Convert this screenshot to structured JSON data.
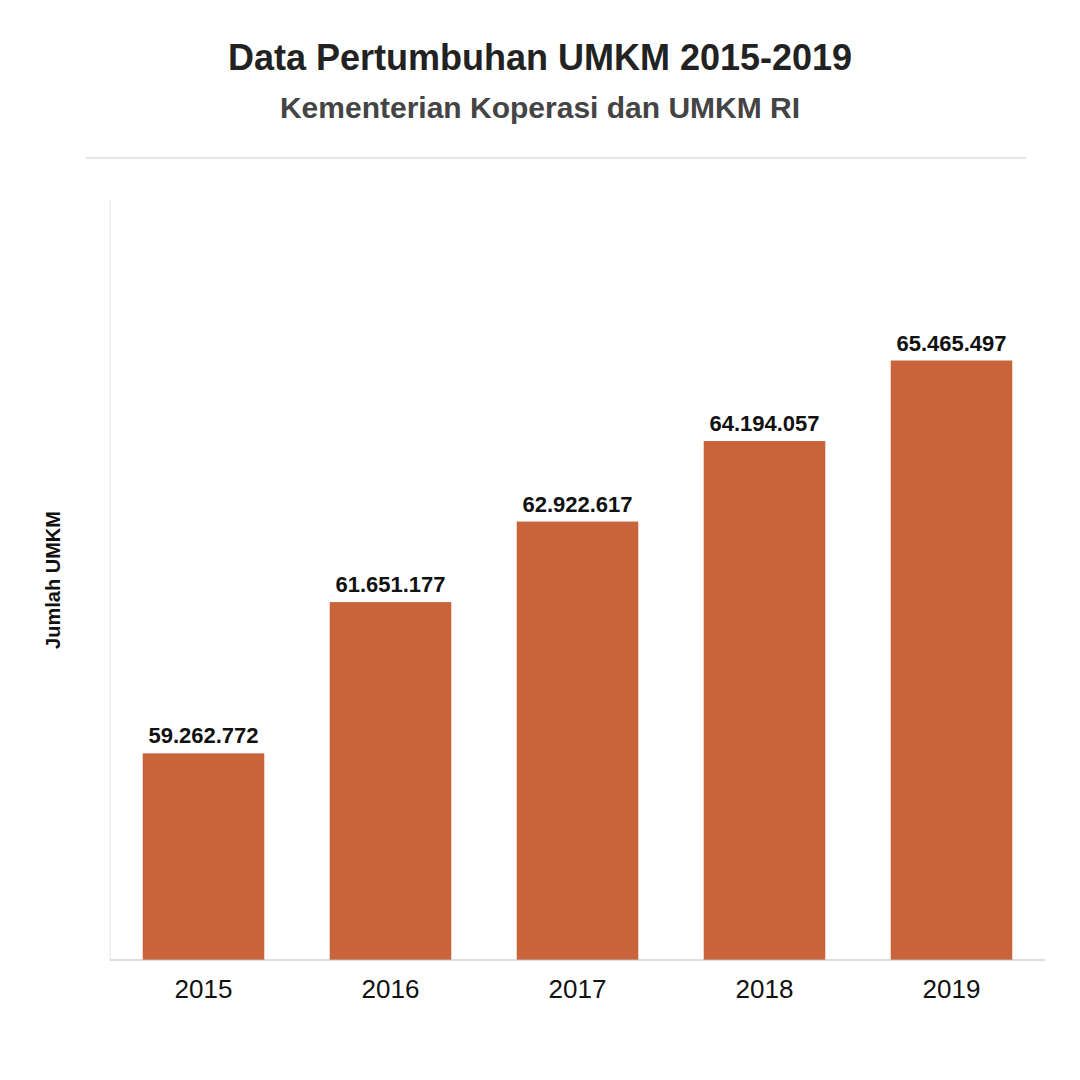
{
  "chart_data": {
    "type": "bar",
    "title": "Data Pertumbuhan UMKM 2015-2019",
    "subtitle": "Kementerian Koperasi dan UMKM RI",
    "categories": [
      "2015",
      "2016",
      "2017",
      "2018",
      "2019"
    ],
    "values": [
      59262772,
      61651177,
      62922617,
      64194057,
      65465497
    ],
    "value_labels": [
      "59.262.772",
      "61.651.177",
      "62.922.617",
      "64.194.057",
      "65.465.497"
    ],
    "color": "#C8633A",
    "ylabel": "Jumlah UMKM",
    "ylim": [
      56000000,
      68000000
    ],
    "data_labels": true,
    "tick_labels": "x",
    "grid": false
  }
}
